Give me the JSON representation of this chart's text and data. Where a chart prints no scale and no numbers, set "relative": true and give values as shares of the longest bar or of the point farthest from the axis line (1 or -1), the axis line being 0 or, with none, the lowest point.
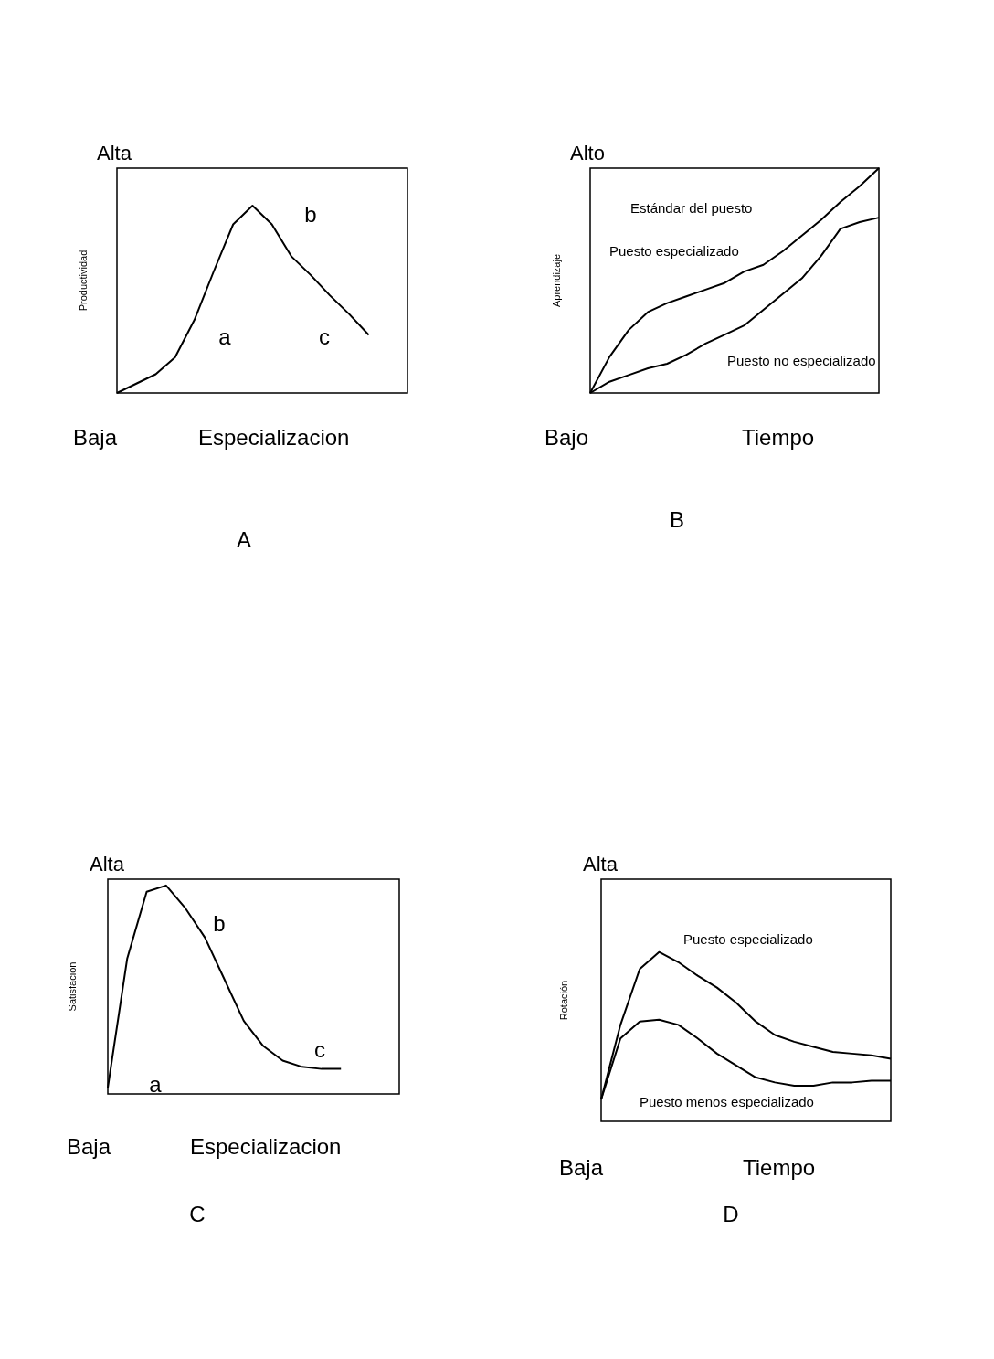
{
  "chart_data": [
    {
      "type": "line",
      "title": "A",
      "xlabel": "Especializacion",
      "ylabel": "Productividad",
      "relative": true,
      "categories": [
        null,
        null,
        null,
        null,
        null,
        null,
        null,
        null,
        null,
        null,
        null,
        null,
        null,
        null,
        null,
        null
      ],
      "series": [
        {
          "color": "#000000",
          "values": [
            0,
            0.05,
            0.1,
            0.19,
            0.39,
            0.65,
            0.9,
            1,
            0.9,
            0.73,
            0.63,
            0.52,
            0.42,
            0.31,
            null,
            null
          ]
        }
      ],
      "annotations": [
        "Alta",
        "Baja",
        "a",
        "b",
        "c"
      ]
    },
    {
      "type": "line",
      "title": "B",
      "xlabel": "Tiempo",
      "ylabel": "Aprendizaje",
      "relative": true,
      "categories": [
        null,
        null,
        null,
        null,
        null,
        null,
        null,
        null,
        null,
        null,
        null,
        null,
        null,
        null,
        null,
        null
      ],
      "series": [
        {
          "name": "Puesto especializado",
          "color": "#000000",
          "values": [
            0,
            0.16,
            0.28,
            0.36,
            0.4,
            0.43,
            0.46,
            0.49,
            0.54,
            0.57,
            0.63,
            0.7,
            0.77,
            0.85,
            0.92,
            1
          ]
        },
        {
          "name": "Puesto no especializado",
          "color": "#000000",
          "values": [
            0,
            0.05,
            0.08,
            0.11,
            0.13,
            0.17,
            0.22,
            0.26,
            0.3,
            0.37,
            0.44,
            0.51,
            0.61,
            0.73,
            0.76,
            0.78
          ]
        }
      ],
      "annotations": [
        "Alto",
        "Bajo",
        "Estándar del puesto"
      ]
    },
    {
      "type": "line",
      "title": "C",
      "xlabel": "Especializacion",
      "ylabel": "Satisfacion",
      "relative": true,
      "categories": [
        null,
        null,
        null,
        null,
        null,
        null,
        null,
        null,
        null,
        null,
        null,
        null,
        null,
        null,
        null,
        null
      ],
      "series": [
        {
          "color": "#000000",
          "values": [
            0.03,
            0.65,
            0.97,
            1,
            0.89,
            0.75,
            0.55,
            0.35,
            0.23,
            0.16,
            0.13,
            0.12,
            0.12,
            null,
            null,
            null
          ]
        }
      ],
      "annotations": [
        "Alta",
        "Baja",
        "a",
        "b",
        "c"
      ]
    },
    {
      "type": "line",
      "title": "D",
      "xlabel": "Tiempo",
      "ylabel": "Rotación",
      "relative": true,
      "categories": [
        null,
        null,
        null,
        null,
        null,
        null,
        null,
        null,
        null,
        null,
        null,
        null,
        null,
        null,
        null,
        null
      ],
      "series": [
        {
          "name": "Puesto especializado",
          "color": "#000000",
          "values": [
            0.13,
            0.57,
            0.9,
            1,
            0.94,
            0.86,
            0.79,
            0.7,
            0.59,
            0.51,
            0.47,
            0.44,
            0.41,
            0.4,
            0.39,
            0.37
          ]
        },
        {
          "name": "Puesto menos especializado",
          "color": "#000000",
          "values": [
            0.13,
            0.49,
            0.59,
            0.6,
            0.57,
            0.49,
            0.4,
            0.33,
            0.26,
            0.23,
            0.21,
            0.21,
            0.23,
            0.23,
            0.24,
            0.24
          ]
        }
      ],
      "annotations": [
        "Alta",
        "Baja"
      ]
    }
  ]
}
